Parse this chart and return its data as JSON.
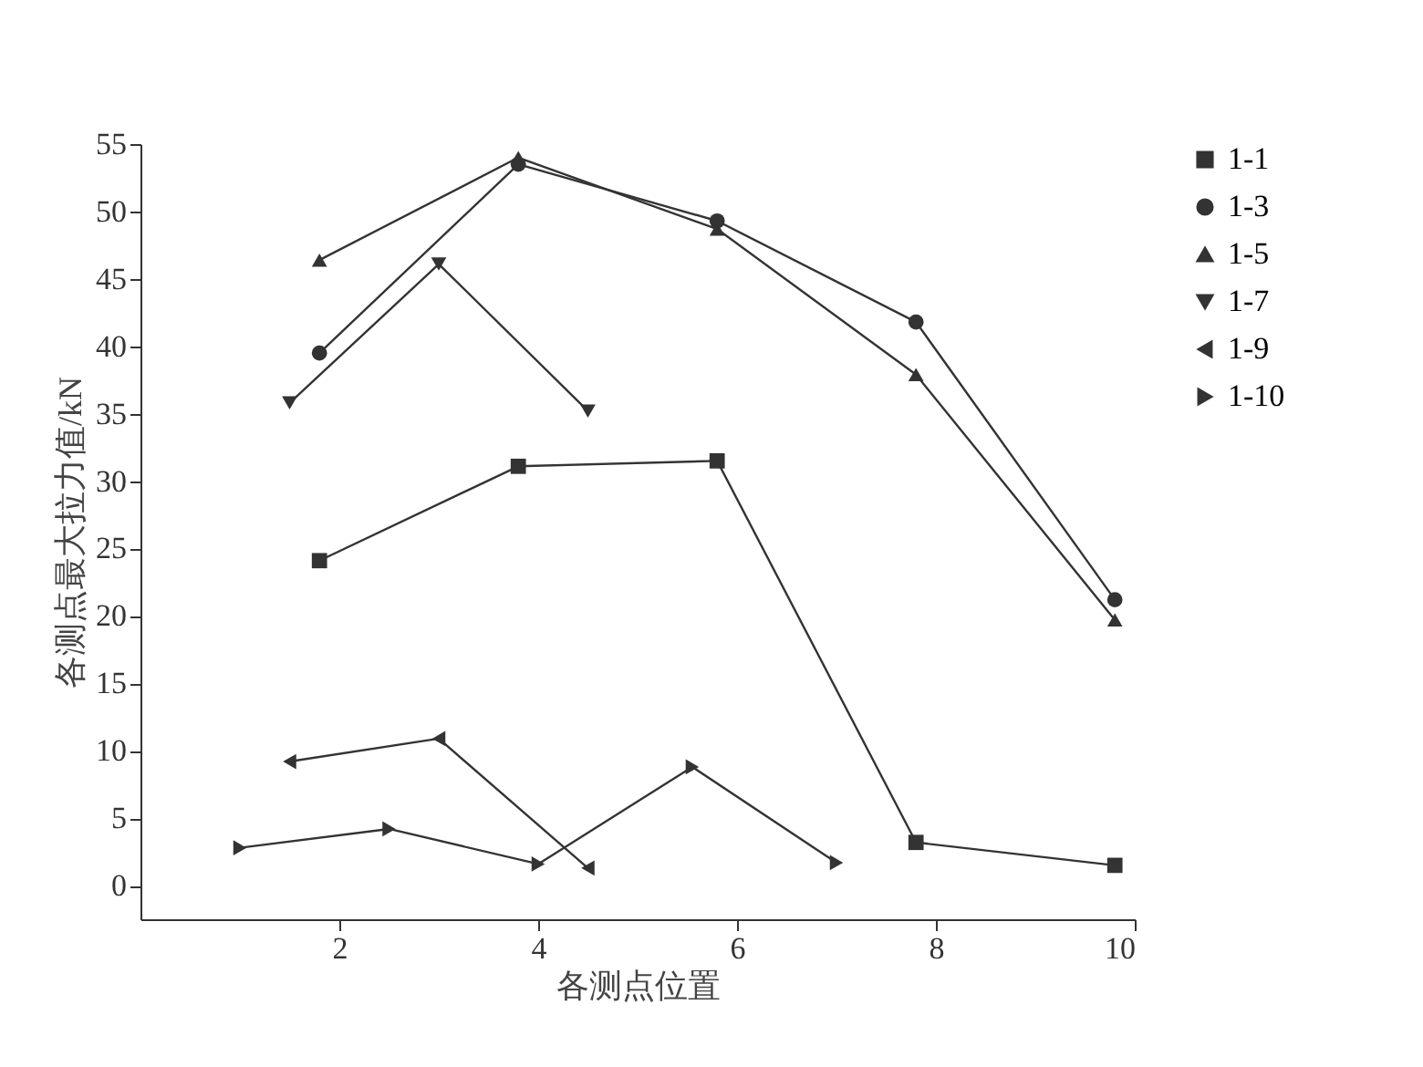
{
  "chart_data": {
    "type": "line",
    "xlabel": "各测点位置",
    "ylabel": "各测点最大拉力值/kN",
    "xlim": [
      0,
      10
    ],
    "xticks": [
      2,
      4,
      6,
      8,
      10
    ],
    "ylim": [
      -2.5,
      55
    ],
    "yticks": [
      0,
      5,
      10,
      15,
      20,
      25,
      30,
      35,
      40,
      45,
      50,
      55
    ],
    "grid": false,
    "legend": "top right",
    "line_style": "solid",
    "series": [
      {
        "name": "1-1",
        "color": "#333333",
        "marker": "square",
        "x": [
          1.8,
          3.8,
          5.8,
          7.8,
          9.8
        ],
        "values": [
          24.1,
          31.1,
          31.5,
          3.2,
          1.5
        ]
      },
      {
        "name": "1-3",
        "color": "#333333",
        "marker": "circle",
        "x": [
          1.8,
          3.8,
          5.8,
          7.8,
          9.8
        ],
        "values": [
          39.5,
          53.5,
          49.3,
          41.8,
          21.2
        ]
      },
      {
        "name": "1-5",
        "color": "#333333",
        "marker": "triangle-up",
        "x": [
          1.8,
          3.8,
          5.8,
          7.8,
          9.8
        ],
        "values": [
          46.4,
          54,
          48.7,
          37.9,
          19.7
        ]
      },
      {
        "name": "1-7",
        "color": "#333333",
        "marker": "triangle-down",
        "x": [
          1.5,
          3.0,
          4.5
        ],
        "values": [
          35.8,
          46.1,
          35.2
        ]
      },
      {
        "name": "1-9",
        "color": "#333333",
        "marker": "triangle-left",
        "x": [
          1.5,
          3.0,
          4.5
        ],
        "values": [
          9.2,
          10.9,
          1.3
        ]
      },
      {
        "name": "1-10",
        "color": "#333333",
        "marker": "triangle-right",
        "x": [
          1.0,
          2.5,
          4.0,
          5.55,
          7.0
        ],
        "values": [
          2.8,
          4.2,
          1.6,
          8.8,
          1.7
        ]
      }
    ]
  }
}
